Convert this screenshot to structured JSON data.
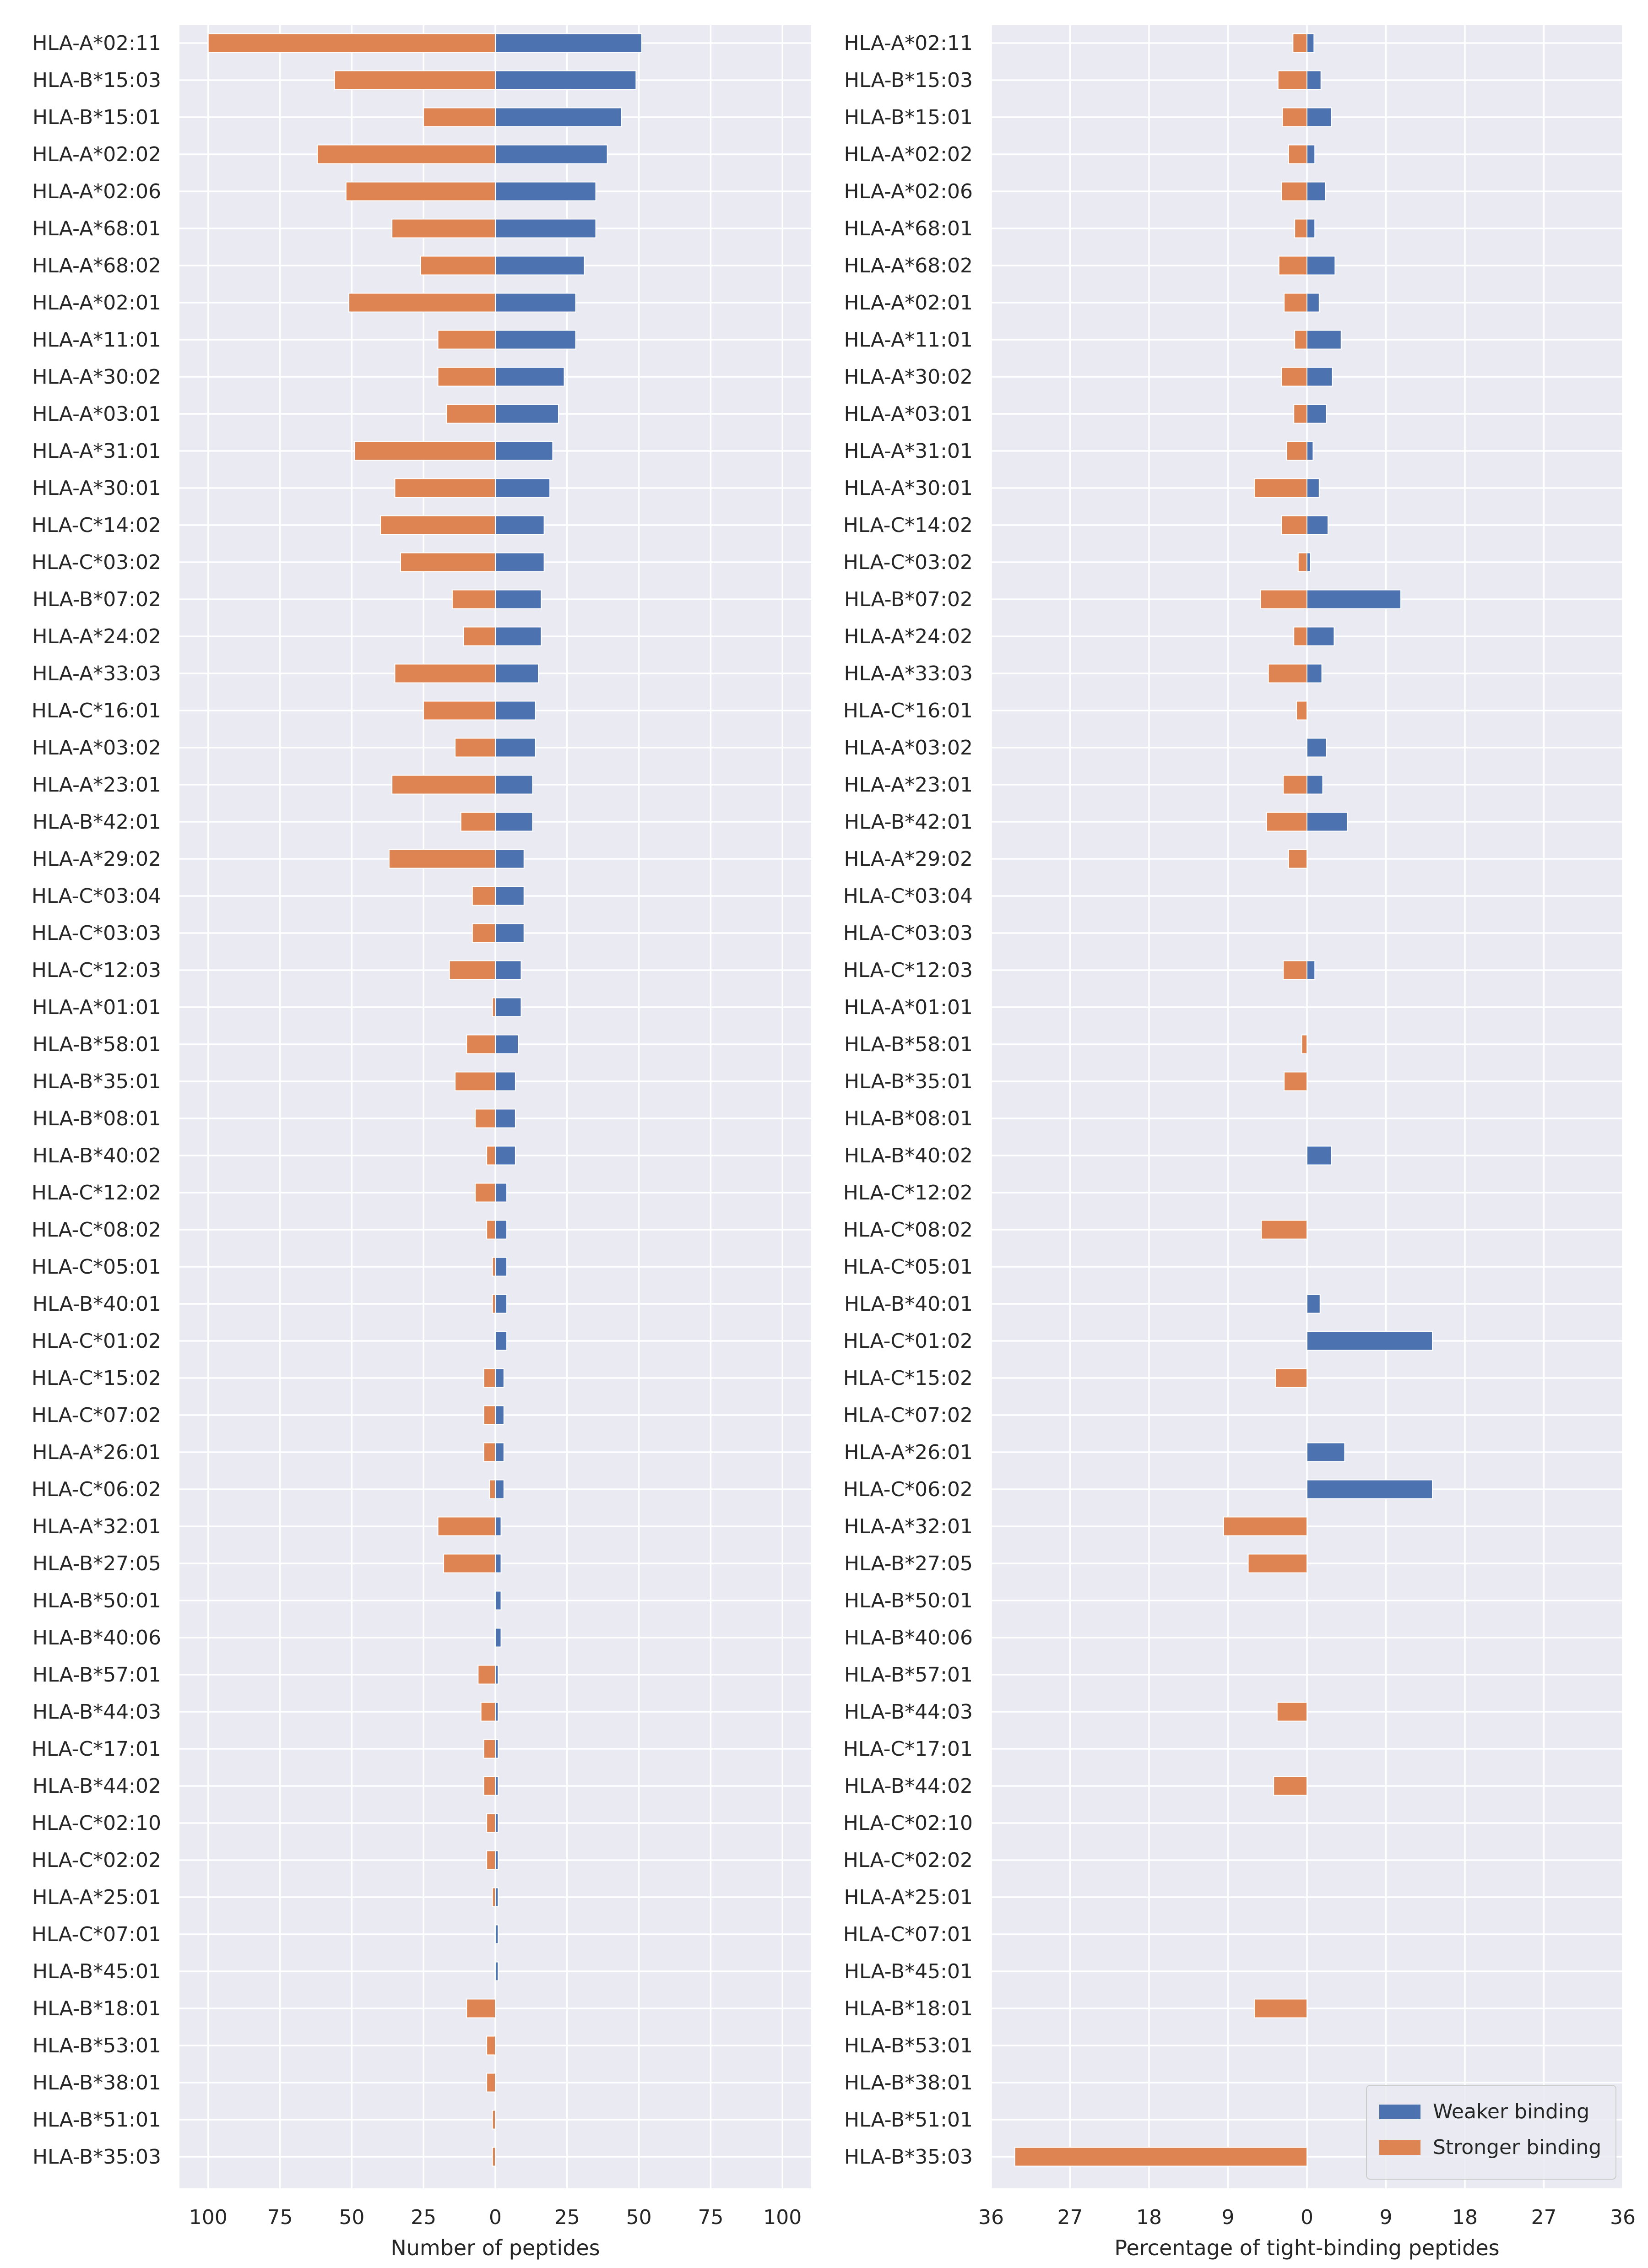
{
  "chart_data": [
    {
      "type": "bar",
      "orientation": "horizontal-diverging",
      "xlabel": "Number of peptides",
      "x_ticks": [
        "100",
        "75",
        "50",
        "25",
        "0",
        "25",
        "50",
        "75",
        "100"
      ],
      "xlim": [
        -110,
        110
      ],
      "grid": true,
      "categories": [
        "HLA-A*02:11",
        "HLA-B*15:03",
        "HLA-B*15:01",
        "HLA-A*02:02",
        "HLA-A*02:06",
        "HLA-A*68:01",
        "HLA-A*68:02",
        "HLA-A*02:01",
        "HLA-A*11:01",
        "HLA-A*30:02",
        "HLA-A*03:01",
        "HLA-A*31:01",
        "HLA-A*30:01",
        "HLA-C*14:02",
        "HLA-C*03:02",
        "HLA-B*07:02",
        "HLA-A*24:02",
        "HLA-A*33:03",
        "HLA-C*16:01",
        "HLA-A*03:02",
        "HLA-A*23:01",
        "HLA-B*42:01",
        "HLA-A*29:02",
        "HLA-C*03:04",
        "HLA-C*03:03",
        "HLA-C*12:03",
        "HLA-A*01:01",
        "HLA-B*58:01",
        "HLA-B*35:01",
        "HLA-B*08:01",
        "HLA-B*40:02",
        "HLA-C*12:02",
        "HLA-C*08:02",
        "HLA-C*05:01",
        "HLA-B*40:01",
        "HLA-C*01:02",
        "HLA-C*15:02",
        "HLA-C*07:02",
        "HLA-A*26:01",
        "HLA-C*06:02",
        "HLA-A*32:01",
        "HLA-B*27:05",
        "HLA-B*50:01",
        "HLA-B*40:06",
        "HLA-B*57:01",
        "HLA-B*44:03",
        "HLA-C*17:01",
        "HLA-B*44:02",
        "HLA-C*02:10",
        "HLA-C*02:02",
        "HLA-A*25:01",
        "HLA-C*07:01",
        "HLA-B*45:01",
        "HLA-B*18:01",
        "HLA-B*53:01",
        "HLA-B*38:01",
        "HLA-B*51:01",
        "HLA-B*35:03"
      ],
      "series": [
        {
          "name": "Weaker binding",
          "color": "#4c72b0",
          "values": [
            51,
            49,
            44,
            39,
            35,
            35,
            31,
            28,
            28,
            24,
            22,
            20,
            19,
            17,
            17,
            16,
            16,
            15,
            14,
            14,
            13,
            13,
            10,
            10,
            10,
            9,
            9,
            8,
            7,
            7,
            7,
            4,
            4,
            4,
            4,
            4,
            3,
            3,
            3,
            3,
            2,
            2,
            2,
            2,
            1,
            1,
            1,
            1,
            1,
            1,
            1,
            1,
            1,
            0,
            0,
            0,
            0,
            0
          ]
        },
        {
          "name": "Stronger binding",
          "color": "#dd8452",
          "values": [
            100,
            56,
            25,
            62,
            52,
            36,
            26,
            51,
            20,
            20,
            17,
            49,
            35,
            40,
            33,
            15,
            11,
            35,
            25,
            14,
            36,
            12,
            37,
            8,
            8,
            16,
            1,
            10,
            14,
            7,
            3,
            7,
            3,
            1,
            1,
            0,
            4,
            4,
            4,
            2,
            20,
            18,
            0,
            0,
            6,
            5,
            4,
            4,
            3,
            3,
            1,
            0,
            0,
            10,
            3,
            3,
            1,
            1
          ]
        }
      ]
    },
    {
      "type": "bar",
      "orientation": "horizontal-diverging",
      "xlabel": "Percentage of tight-binding peptides",
      "x_ticks": [
        "36",
        "27",
        "18",
        "9",
        "0",
        "9",
        "18",
        "27",
        "36"
      ],
      "xlim": [
        -36,
        36
      ],
      "grid": true,
      "legend_position": "bottom-right",
      "categories": [
        "HLA-A*02:11",
        "HLA-B*15:03",
        "HLA-B*15:01",
        "HLA-A*02:02",
        "HLA-A*02:06",
        "HLA-A*68:01",
        "HLA-A*68:02",
        "HLA-A*02:01",
        "HLA-A*11:01",
        "HLA-A*30:02",
        "HLA-A*03:01",
        "HLA-A*31:01",
        "HLA-A*30:01",
        "HLA-C*14:02",
        "HLA-C*03:02",
        "HLA-B*07:02",
        "HLA-A*24:02",
        "HLA-A*33:03",
        "HLA-C*16:01",
        "HLA-A*03:02",
        "HLA-A*23:01",
        "HLA-B*42:01",
        "HLA-A*29:02",
        "HLA-C*03:04",
        "HLA-C*03:03",
        "HLA-C*12:03",
        "HLA-A*01:01",
        "HLA-B*58:01",
        "HLA-B*35:01",
        "HLA-B*08:01",
        "HLA-B*40:02",
        "HLA-C*12:02",
        "HLA-C*08:02",
        "HLA-C*05:01",
        "HLA-B*40:01",
        "HLA-C*01:02",
        "HLA-C*15:02",
        "HLA-C*07:02",
        "HLA-A*26:01",
        "HLA-C*06:02",
        "HLA-A*32:01",
        "HLA-B*27:05",
        "HLA-B*50:01",
        "HLA-B*40:06",
        "HLA-B*57:01",
        "HLA-B*44:03",
        "HLA-C*17:01",
        "HLA-B*44:02",
        "HLA-C*02:10",
        "HLA-C*02:02",
        "HLA-A*25:01",
        "HLA-C*07:01",
        "HLA-B*45:01",
        "HLA-B*18:01",
        "HLA-B*53:01",
        "HLA-B*38:01",
        "HLA-B*51:01",
        "HLA-B*35:03"
      ],
      "series": [
        {
          "name": "Weaker binding",
          "color": "#4c72b0",
          "values": [
            0.8,
            1.6,
            2.8,
            0.9,
            2.1,
            0.9,
            3.2,
            1.4,
            3.9,
            2.9,
            2.2,
            0.7,
            1.4,
            2.4,
            0.4,
            10.7,
            3.1,
            1.7,
            0,
            2.2,
            1.8,
            4.6,
            0,
            0,
            0,
            0.9,
            0,
            0,
            0,
            0,
            2.8,
            0,
            0,
            0,
            1.5,
            14.3,
            0,
            0,
            4.3,
            14.3,
            0,
            0,
            0,
            0,
            0,
            0,
            0,
            0,
            0,
            0,
            0,
            0,
            0,
            0,
            0,
            0,
            0,
            0
          ]
        },
        {
          "name": "Stronger binding",
          "color": "#dd8452",
          "values": [
            1.6,
            3.3,
            2.8,
            2.1,
            2.9,
            1.4,
            3.2,
            2.6,
            1.4,
            2.9,
            1.5,
            2.3,
            6.0,
            2.9,
            1.0,
            5.3,
            1.5,
            4.4,
            1.2,
            0,
            2.7,
            4.6,
            2.1,
            0,
            0,
            2.7,
            0,
            0.6,
            2.6,
            0,
            0,
            0,
            5.2,
            0,
            0,
            0,
            3.6,
            0,
            0,
            0,
            9.5,
            6.7,
            0,
            0,
            0,
            3.4,
            0,
            3.8,
            0,
            0,
            0,
            0,
            0,
            6.0,
            0,
            0,
            0,
            33.3
          ]
        }
      ]
    }
  ]
}
